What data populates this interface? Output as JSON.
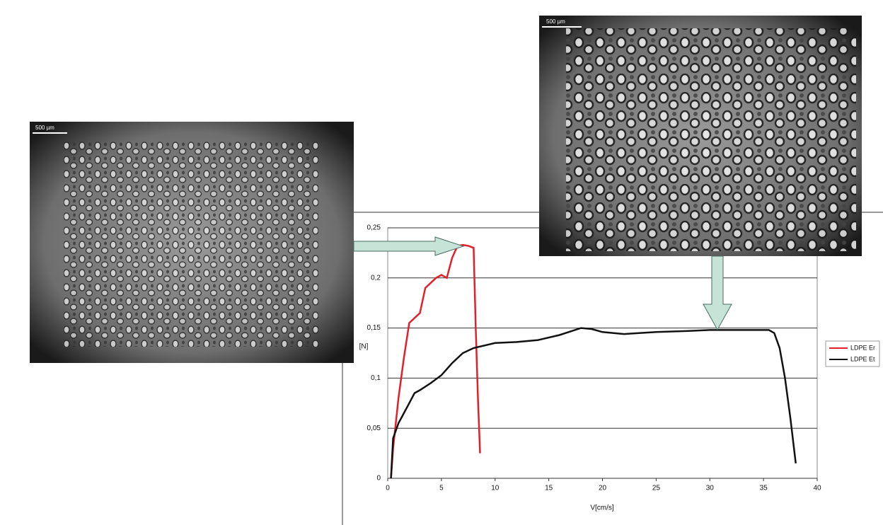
{
  "chart_data": {
    "type": "line",
    "y_label": "[N]",
    "x_label": "V[cm/s]",
    "image_labels": [
      "500 µm",
      "500 µm"
    ],
    "xlim": [
      0,
      40
    ],
    "xticks": [
      0,
      5,
      10,
      15,
      20,
      25,
      30,
      35,
      40
    ],
    "ylim": [
      0,
      0.25
    ],
    "yticks": [
      0,
      {
        "value": 0.05,
        "label": "0,05"
      },
      {
        "value": 0.1,
        "label": "0,1"
      },
      {
        "value": 0.15,
        "label": "0,15"
      },
      {
        "value": 0.2,
        "label": "0,2"
      },
      {
        "value": 0.25,
        "label": "0,25"
      }
    ],
    "grid": true,
    "legend": "right",
    "series": [
      {
        "name": "LDPE Er",
        "color": "#e3202a",
        "x": [
          0.3,
          0.5,
          1,
          1.5,
          2,
          3,
          3.5,
          4.5,
          5,
          5.5,
          6,
          6.5,
          7,
          7.5,
          8,
          8.2,
          8.4,
          8.6
        ],
        "values": [
          0,
          0.03,
          0.08,
          0.12,
          0.155,
          0.165,
          0.19,
          0.2,
          0.203,
          0.2,
          0.22,
          0.232,
          0.233,
          0.232,
          0.23,
          0.15,
          0.08,
          0.025
        ]
      },
      {
        "name": "LDPE Et",
        "color": "#111111",
        "x": [
          0.3,
          0.5,
          1,
          1.5,
          2,
          2.5,
          3,
          4,
          5,
          6,
          7,
          8,
          10,
          12,
          14,
          16,
          18,
          19,
          20,
          22,
          25,
          28,
          30,
          33,
          35.5,
          36,
          36.5,
          37,
          37.5,
          38
        ],
        "values": [
          0,
          0.04,
          0.055,
          0.065,
          0.075,
          0.085,
          0.088,
          0.095,
          0.103,
          0.115,
          0.125,
          0.13,
          0.135,
          0.136,
          0.138,
          0.143,
          0.15,
          0.149,
          0.146,
          0.144,
          0.146,
          0.147,
          0.148,
          0.148,
          0.148,
          0.145,
          0.13,
          0.1,
          0.06,
          0.015
        ]
      }
    ]
  }
}
